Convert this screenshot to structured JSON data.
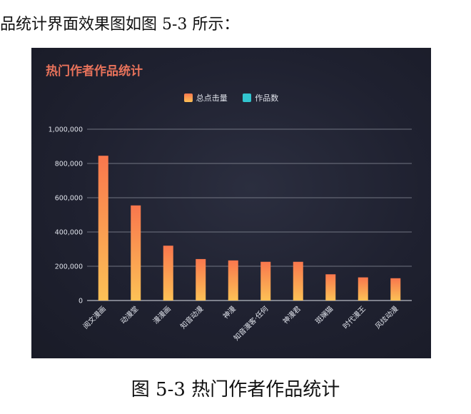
{
  "intro_text": "品统计界面效果图如图 5-3 所示：",
  "caption": "图 5-3 热门作者作品统计",
  "colors": {
    "background": "#1f2130",
    "title": "#e9735b",
    "bar_top": "#f9774d",
    "bar_bottom": "#fcc156",
    "works": "#32c5cf",
    "grid": "#8d909c",
    "text": "#dfe2ea"
  },
  "chart_data": {
    "type": "bar",
    "title": "热门作者作品统计",
    "legend_position": "top-center",
    "grid": true,
    "categories": [
      "阅文漫画",
      "动漫堂",
      "漫漫画",
      "知音动漫",
      "神漫",
      "知音漫客·任何",
      "神漫君",
      "斑斓猫",
      "时代漫王",
      "风炫动漫"
    ],
    "series": [
      {
        "name": "总点击量",
        "values": [
          845000,
          555000,
          320000,
          242000,
          234000,
          226000,
          226000,
          153000,
          135000,
          130000
        ]
      },
      {
        "name": "作品数",
        "values": [
          0,
          0,
          0,
          0,
          0,
          0,
          0,
          0,
          0,
          0
        ]
      }
    ],
    "yticks": [
      "0",
      "200,000",
      "400,000",
      "600,000",
      "800,000",
      "1,000,000"
    ],
    "ylim": [
      0,
      1000000
    ]
  }
}
